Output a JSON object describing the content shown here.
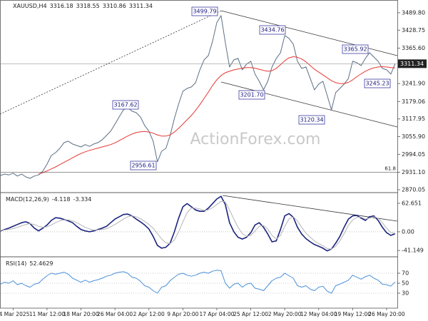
{
  "chart_data": [
    {
      "type": "line",
      "title": "XAUUSD,H4",
      "ohlc": [
        3316.18,
        3318.55,
        3310.86,
        3311.34
      ],
      "categories": [
        null,
        null,
        null,
        "4 Mar 2025",
        null,
        null,
        null,
        null,
        null,
        null,
        null,
        "11 Mar 12:00",
        null,
        null,
        null,
        null,
        null,
        null,
        null,
        "18 Mar 20:00",
        null,
        null,
        null,
        null,
        null,
        null,
        null,
        "26 Mar 04:00",
        null,
        null,
        null,
        null,
        null,
        null,
        null,
        "2 Apr 12:00",
        null,
        null,
        null,
        null,
        null,
        null,
        null,
        "9 Apr 20:00",
        null,
        null,
        null,
        null,
        null,
        null,
        null,
        "17 Apr 04:00",
        null,
        null,
        null,
        null,
        null,
        null,
        null,
        "25 Apr 12:00",
        null,
        null,
        null,
        null,
        null,
        null,
        null,
        "2 May 20:00",
        null,
        null,
        null,
        null,
        null,
        null,
        null,
        "12 May 04:00",
        null,
        null,
        null,
        null,
        null,
        null,
        null,
        "19 May 12:00",
        null,
        null,
        null,
        null,
        null,
        null,
        null,
        "26 May 20:00",
        null,
        null
      ],
      "series": [
        {
          "color": "#5b6f86",
          "values": [
            2920,
            2925,
            2922,
            2928,
            2918,
            2925,
            2915,
            2910,
            2918,
            2922,
            2935,
            2960,
            2990,
            3000,
            3015,
            3035,
            3040,
            3030,
            3025,
            3020,
            3028,
            3022,
            3030,
            3035,
            3045,
            3060,
            3075,
            3100,
            3125,
            3150,
            3158,
            3145,
            3140,
            3125,
            3095,
            3075,
            3040,
            2968,
            3005,
            3015,
            3060,
            3120,
            3170,
            3215,
            3225,
            3230,
            3245,
            3290,
            3325,
            3340,
            3390,
            3455,
            3480,
            3385,
            3300,
            3325,
            3330,
            3290,
            3310,
            3320,
            3275,
            3250,
            3220,
            3250,
            3300,
            3330,
            3350,
            3410,
            3400,
            3380,
            3320,
            3295,
            3300,
            3260,
            3220,
            3240,
            3250,
            3200,
            3150,
            3210,
            3225,
            3240,
            3260,
            3320,
            3315,
            3305,
            3330,
            3350,
            3335,
            3320,
            3295,
            3290,
            3275,
            3311.34
          ]
        },
        {
          "color": "#e53935",
          "values": [
            null,
            null,
            null,
            null,
            null,
            null,
            null,
            null,
            null,
            2925,
            2930,
            2936,
            2943,
            2950,
            2958,
            2966,
            2974,
            2982,
            2990,
            2997,
            3003,
            3008,
            3012,
            3016,
            3020,
            3024,
            3028,
            3034,
            3042,
            3050,
            3058,
            3065,
            3070,
            3073,
            3074,
            3072,
            3068,
            3062,
            3058,
            3058,
            3062,
            3072,
            3085,
            3100,
            3115,
            3130,
            3148,
            3168,
            3190,
            3212,
            3235,
            3255,
            3270,
            3280,
            3285,
            3290,
            3293,
            3296,
            3298,
            3298,
            3296,
            3292,
            3288,
            3285,
            3287,
            3295,
            3308,
            3322,
            3332,
            3336,
            3334,
            3328,
            3318,
            3305,
            3292,
            3282,
            3272,
            3262,
            3252,
            3245,
            3242,
            3242,
            3246,
            3255,
            3266,
            3276,
            3285,
            3292,
            3297,
            3300,
            3301,
            3300,
            3298,
            3297
          ]
        }
      ],
      "ylim": [
        2860,
        3522
      ],
      "yticks": [
        {
          "value": 3489.8,
          "label": "3489.80"
        },
        3428.75,
        {
          "value": 3365.6,
          "label": "3365.60"
        },
        {
          "value": 3241.9,
          "label": "3241.90"
        },
        3179.06,
        3117.95,
        {
          "value": 3055.9,
          "label": "3055.90"
        },
        2994.05,
        {
          "value": 2931.1,
          "label": "2931.10"
        },
        2870.05
      ],
      "grid": false,
      "annotations": [
        3499.79,
        3434.76,
        3365.92,
        3167.62,
        {
          "value": 3201.7,
          "label": "3201.70"
        },
        3245.23,
        3120.34,
        2956.61
      ],
      "fib_level": 61.8,
      "watermark": "ActionForex.com"
    },
    {
      "type": "line",
      "title": "MACD(12,26,9)",
      "readout": [
        -4.118,
        -3.334
      ],
      "series": [
        {
          "color": "#1a237e",
          "values": [
            2,
            5,
            8,
            12,
            16,
            20,
            22,
            18,
            8,
            2,
            8,
            15,
            25,
            31,
            30,
            27,
            24,
            20,
            12,
            5,
            2,
            0,
            2,
            5,
            8,
            12,
            20,
            28,
            33,
            38,
            39,
            35,
            28,
            22,
            15,
            6,
            -10,
            -30,
            -36,
            -34,
            -25,
            0,
            30,
            55,
            62,
            55,
            48,
            45,
            45,
            52,
            62,
            72,
            78,
            60,
            20,
            0,
            -12,
            -16,
            -12,
            -2,
            15,
            20,
            10,
            -5,
            -22,
            -20,
            5,
            35,
            40,
            32,
            10,
            -5,
            -15,
            -22,
            -28,
            -32,
            -36,
            -42,
            -38,
            -25,
            -10,
            10,
            28,
            35,
            36,
            30,
            25,
            33,
            35,
            25,
            10,
            -2,
            -8,
            -4.118
          ]
        },
        {
          "color": "#b5b5b5",
          "values": [
            3,
            4,
            5,
            7,
            10,
            13,
            16,
            18,
            16,
            12,
            10,
            11,
            15,
            20,
            24,
            26,
            26,
            24,
            20,
            15,
            10,
            6,
            4,
            4,
            5,
            7,
            11,
            16,
            22,
            28,
            33,
            35,
            33,
            29,
            23,
            16,
            8,
            -4,
            -16,
            -24,
            -26,
            -18,
            0,
            22,
            42,
            52,
            52,
            50,
            47,
            48,
            53,
            60,
            67,
            66,
            48,
            28,
            10,
            -4,
            -10,
            -8,
            2,
            12,
            14,
            6,
            -8,
            -16,
            -8,
            12,
            28,
            33,
            24,
            10,
            -3,
            -12,
            -20,
            -26,
            -31,
            -37,
            -38,
            -32,
            -20,
            -4,
            14,
            26,
            32,
            32,
            28,
            30,
            33,
            30,
            20,
            8,
            -2,
            -3.334
          ]
        }
      ],
      "ylim": [
        -55,
        83
      ],
      "yticks": [
        62.651,
        {
          "value": 0,
          "label": "0.00"
        },
        -41.149
      ],
      "grid": false
    },
    {
      "type": "line",
      "title": "RSI(14)",
      "readout": [
        52.4629
      ],
      "series": [
        {
          "color": "#4a90d9",
          "values": [
            48,
            52,
            50,
            55,
            47,
            50,
            45,
            42,
            48,
            50,
            58,
            65,
            70,
            68,
            70,
            72,
            68,
            60,
            56,
            52,
            56,
            52,
            55,
            57,
            60,
            64,
            66,
            70,
            72,
            73,
            70,
            62,
            60,
            54,
            45,
            42,
            35,
            30,
            42,
            45,
            55,
            62,
            68,
            70,
            66,
            64,
            66,
            70,
            72,
            70,
            74,
            76,
            75,
            50,
            40,
            48,
            50,
            42,
            48,
            50,
            40,
            38,
            35,
            45,
            55,
            60,
            62,
            70,
            65,
            60,
            45,
            42,
            45,
            38,
            35,
            42,
            44,
            34,
            30,
            45,
            48,
            52,
            56,
            66,
            62,
            58,
            63,
            66,
            60,
            56,
            48,
            47,
            44,
            52.4629
          ]
        }
      ],
      "ylim": [
        0,
        100
      ],
      "yticks": [
        70,
        50,
        30
      ],
      "grid": true
    }
  ]
}
